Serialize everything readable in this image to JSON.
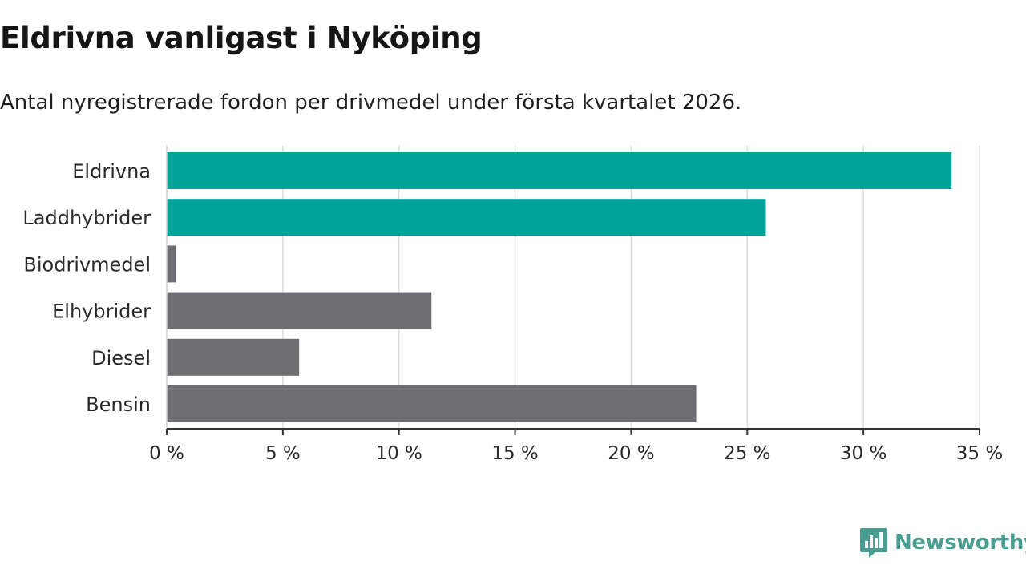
{
  "chart_data": {
    "type": "bar",
    "orientation": "horizontal",
    "title": "Eldrivna vanligast i Nyköping",
    "subtitle": "Antal nyregistrerade fordon per drivmedel under första kvartalet 2026.",
    "categories": [
      "Eldrivna",
      "Laddhybrider",
      "Biodrivmedel",
      "Elhybrider",
      "Diesel",
      "Bensin"
    ],
    "values": [
      33.8,
      25.8,
      0.4,
      11.4,
      5.7,
      22.8
    ],
    "colors": [
      "#00a399",
      "#00a399",
      "#6e6d72",
      "#6e6d72",
      "#6e6d72",
      "#6e6d72"
    ],
    "xlim": [
      0,
      35
    ],
    "xticks": [
      0,
      5,
      10,
      15,
      20,
      25,
      30,
      35
    ],
    "xtick_labels": [
      "0 %",
      "5 %",
      "10 %",
      "15 %",
      "20 %",
      "25 %",
      "30 %",
      "35 %"
    ],
    "xlabel": "",
    "ylabel": "",
    "grid": true
  },
  "branding": {
    "name": "Newsworthy",
    "icon": "newsworthy-logo-icon",
    "color": "#4a9d91"
  }
}
